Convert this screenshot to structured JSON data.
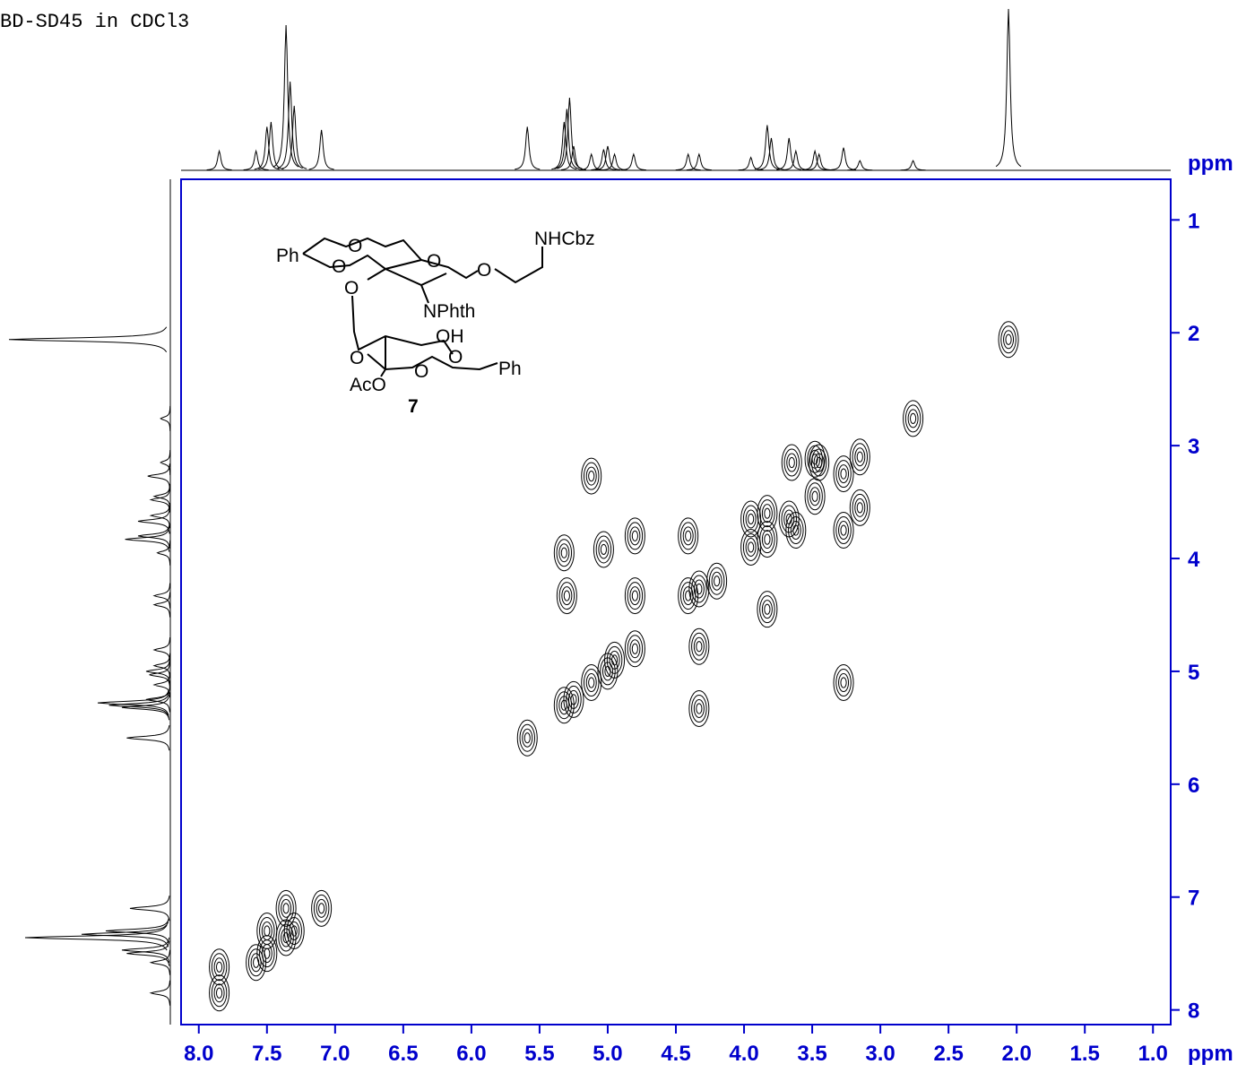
{
  "chart_data": {
    "type": "contour",
    "title": "BD-SD45 in CDCl3",
    "xlabel": "ppm",
    "ylabel": "ppm",
    "xlim": [
      8.13,
      0.87
    ],
    "ylim": [
      0.64,
      8.13
    ],
    "xticks": [
      {
        "value": 8,
        "label": "8.0"
      },
      {
        "value": 7.5,
        "label": "7.5"
      },
      {
        "value": 7,
        "label": "7.0"
      },
      {
        "value": 6.5,
        "label": "6.5"
      },
      {
        "value": 6,
        "label": "6.0"
      },
      {
        "value": 5.5,
        "label": "5.5"
      },
      {
        "value": 5,
        "label": "5.0"
      },
      {
        "value": 4.5,
        "label": "4.5"
      },
      {
        "value": 4,
        "label": "4.0"
      },
      {
        "value": 3.5,
        "label": "3.5"
      },
      {
        "value": 3,
        "label": "3.0"
      },
      {
        "value": 2.5,
        "label": "2.5"
      },
      {
        "value": 2,
        "label": "2.0"
      },
      {
        "value": 1.5,
        "label": "1.5"
      },
      {
        "value": 1,
        "label": "1.0"
      }
    ],
    "yticks": [
      1,
      2,
      3,
      4,
      5,
      6,
      7,
      8
    ],
    "color": "#0000cc",
    "projection": {
      "shifts": [
        7.85,
        7.58,
        7.5,
        7.47,
        7.36,
        7.33,
        7.3,
        7.1,
        5.59,
        5.32,
        5.3,
        5.28,
        5.25,
        5.12,
        5.03,
        5.0,
        4.95,
        4.81,
        4.41,
        4.33,
        3.95,
        3.83,
        3.8,
        3.67,
        3.62,
        3.48,
        3.45,
        3.27,
        3.15,
        2.76,
        2.06
      ],
      "heights": [
        0.12,
        0.12,
        0.27,
        0.3,
        0.9,
        0.55,
        0.4,
        0.25,
        0.27,
        0.3,
        0.38,
        0.45,
        0.15,
        0.1,
        0.13,
        0.15,
        0.1,
        0.1,
        0.1,
        0.1,
        0.08,
        0.28,
        0.2,
        0.2,
        0.12,
        0.12,
        0.1,
        0.14,
        0.06,
        0.06,
        1.0
      ]
    },
    "cross_peaks": {
      "x": [
        7.85,
        7.85,
        7.58,
        7.5,
        7.36,
        7.3,
        7.1,
        7.5,
        7.36,
        5.59,
        5.32,
        5.25,
        5.12,
        5.0,
        4.95,
        4.8,
        5.12,
        5.32,
        5.3,
        5.03,
        4.8,
        4.8,
        4.41,
        4.41,
        4.33,
        4.2,
        4.33,
        4.33,
        3.95,
        3.95,
        3.83,
        3.83,
        3.67,
        3.62,
        3.48,
        3.45,
        3.27,
        3.27,
        3.15,
        3.15,
        3.27,
        3.48,
        3.65,
        2.76,
        2.06,
        3.83
      ],
      "y": [
        7.85,
        7.62,
        7.58,
        7.5,
        7.36,
        7.3,
        7.1,
        7.3,
        7.1,
        5.59,
        5.3,
        5.25,
        5.1,
        5.0,
        4.9,
        4.8,
        3.27,
        3.95,
        4.33,
        3.92,
        3.8,
        4.33,
        3.8,
        4.33,
        4.27,
        4.2,
        4.78,
        5.33,
        3.9,
        3.65,
        3.83,
        3.6,
        3.65,
        3.75,
        3.45,
        3.15,
        3.25,
        3.75,
        3.1,
        3.55,
        5.1,
        3.12,
        3.15,
        2.76,
        2.06,
        4.45
      ]
    }
  },
  "structure": {
    "labels": [
      "Ph",
      "O",
      "O",
      "O",
      "O",
      "NHCbz",
      "O",
      "NPhth",
      "OH",
      "O",
      "O",
      "O",
      "Ph",
      "AcO"
    ],
    "compound_number": "7"
  }
}
